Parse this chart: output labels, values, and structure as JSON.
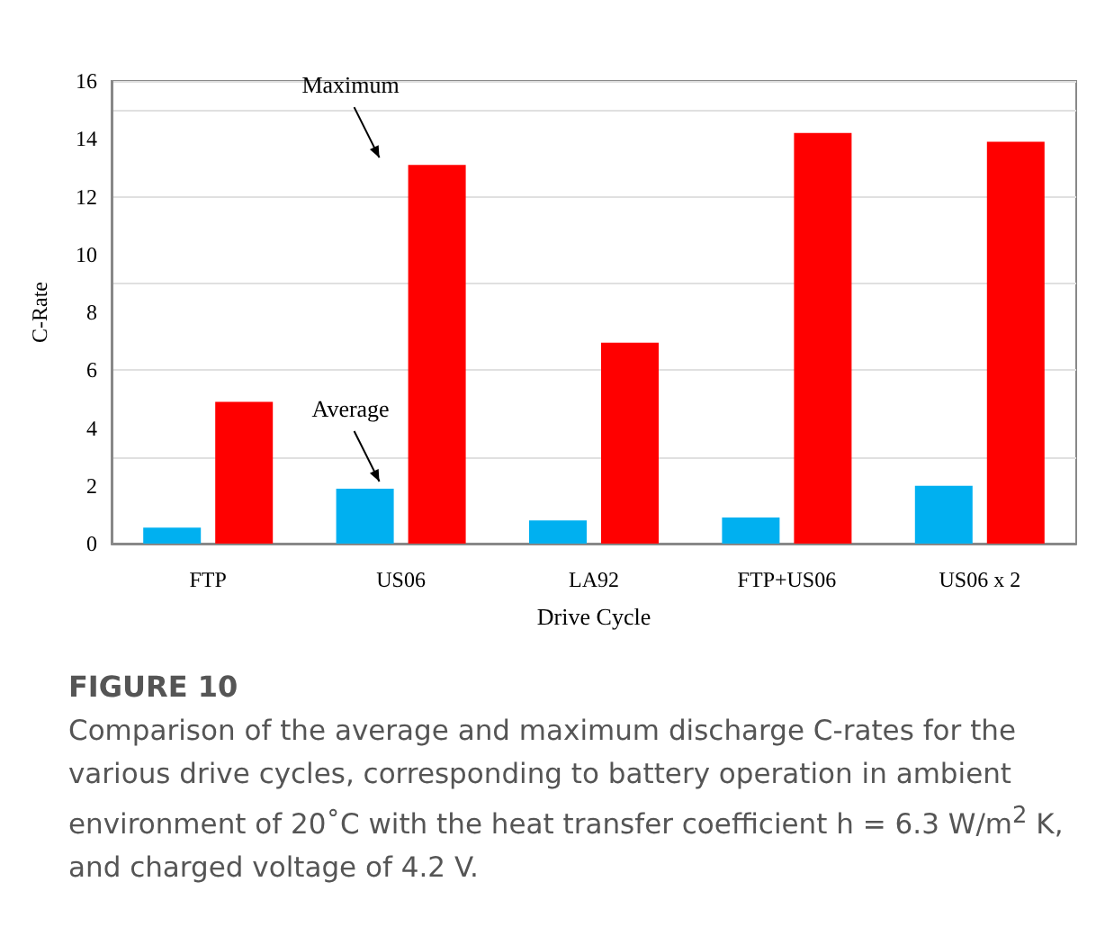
{
  "chart_data": {
    "type": "bar",
    "title": "FIGURE 10",
    "xlabel": "Drive Cycle",
    "ylabel": "C-Rate",
    "categories": [
      "FTP",
      "US06",
      "LA92",
      "FTP+US06",
      "US06 x 2"
    ],
    "series": [
      {
        "name": "Average",
        "color": "#00b0f0",
        "values": [
          0.55,
          1.9,
          0.8,
          0.9,
          2.0
        ]
      },
      {
        "name": "Maximum",
        "color": "#ff0000",
        "values": [
          4.9,
          13.1,
          6.95,
          14.2,
          13.9
        ]
      }
    ],
    "ylim": [
      0,
      16
    ],
    "yticks": [
      0,
      2,
      4,
      6,
      8,
      10,
      12,
      14,
      16
    ],
    "grid": "y",
    "legend": false,
    "annotations": [
      "Comparison of the average and maximum discharge C-rates for the various drive cycles, corresponding to battery operation in ambient environment of 20˚C with the heat transfer coefficient h = 6.3 W/m$^{2}$ K, and charged voltage of 4.2 V."
    ]
  }
}
